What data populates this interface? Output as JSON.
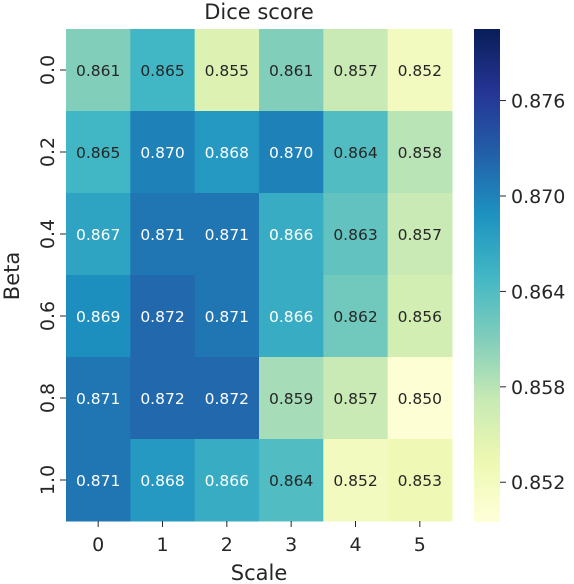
{
  "chart_data": {
    "type": "heatmap",
    "title": "Dice score",
    "xlabel": "Scale",
    "ylabel": "Beta",
    "x_categories": [
      "0",
      "1",
      "2",
      "3",
      "4",
      "5"
    ],
    "y_categories": [
      "0.0",
      "0.2",
      "0.4",
      "0.6",
      "0.8",
      "1.0"
    ],
    "values": [
      [
        0.861,
        0.865,
        0.855,
        0.861,
        0.857,
        0.852
      ],
      [
        0.865,
        0.87,
        0.868,
        0.87,
        0.864,
        0.858
      ],
      [
        0.867,
        0.871,
        0.871,
        0.866,
        0.863,
        0.857
      ],
      [
        0.869,
        0.872,
        0.871,
        0.866,
        0.862,
        0.856
      ],
      [
        0.871,
        0.872,
        0.872,
        0.859,
        0.857,
        0.85
      ],
      [
        0.871,
        0.868,
        0.866,
        0.864,
        0.852,
        0.853
      ]
    ],
    "value_labels": [
      [
        "0.861",
        "0.865",
        "0.855",
        "0.861",
        "0.857",
        "0.852"
      ],
      [
        "0.865",
        "0.870",
        "0.868",
        "0.870",
        "0.864",
        "0.858"
      ],
      [
        "0.867",
        "0.871",
        "0.871",
        "0.866",
        "0.863",
        "0.857"
      ],
      [
        "0.869",
        "0.872",
        "0.871",
        "0.866",
        "0.862",
        "0.856"
      ],
      [
        "0.871",
        "0.872",
        "0.872",
        "0.859",
        "0.857",
        "0.850"
      ],
      [
        "0.871",
        "0.868",
        "0.866",
        "0.864",
        "0.852",
        "0.853"
      ]
    ],
    "colormap": "YlGnBu",
    "colorbar": {
      "vmin": 0.8495,
      "vmax": 0.8805,
      "ticks": [
        0.852,
        0.858,
        0.864,
        0.87,
        0.876
      ],
      "tick_labels": [
        "0.852",
        "0.858",
        "0.864",
        "0.870",
        "0.876"
      ],
      "placement": "right"
    },
    "grid": false,
    "legend": "none"
  }
}
